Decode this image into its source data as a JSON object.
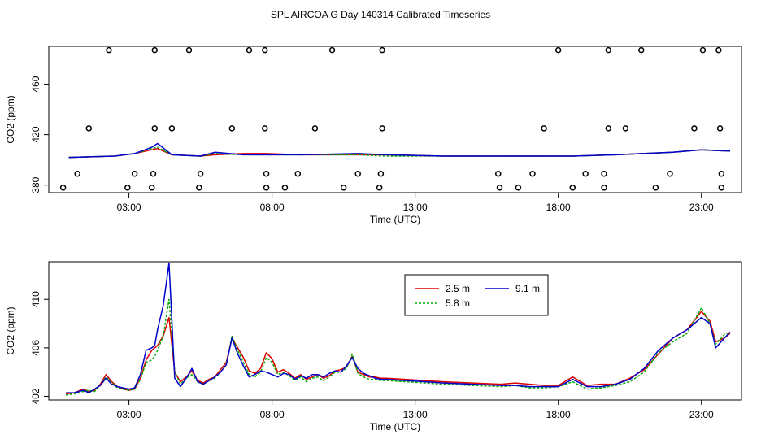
{
  "title": "SPL AIRCOA G  Day 140314  Calibrated Timeseries",
  "colors": {
    "s25": "#dd0000",
    "s58": "#00aa00",
    "s91": "#0000cc"
  },
  "chart_data": [
    {
      "type": "line",
      "panel": "top",
      "xlabel": "Time (UTC)",
      "ylabel": "CO2 (ppm)",
      "x_unit": "hours UTC",
      "xlim": [
        0.2,
        24.4
      ],
      "ylim": [
        374,
        490
      ],
      "x_ticks": [
        3,
        8,
        13,
        18,
        23
      ],
      "x_tick_labels": [
        "03:00",
        "08:00",
        "13:00",
        "18:00",
        "23:00"
      ],
      "y_ticks": [
        380,
        420,
        460
      ],
      "y_tick_labels": [
        "380",
        "420",
        "460"
      ],
      "grid": false,
      "series": [
        {
          "key": "s25",
          "color": "#dd0000",
          "x": [
            0.9,
            2.5,
            3.2,
            3.8,
            4.0,
            4.5,
            5.5,
            6.0,
            7.0,
            7.8,
            9.0,
            11.0,
            12.0,
            14.0,
            16.0,
            17.5,
            18.5,
            20.0,
            22.0,
            23.0,
            24.0
          ],
          "y": [
            402,
            403,
            405,
            408,
            409,
            404,
            403,
            404,
            405,
            405,
            404,
            404,
            404,
            403,
            403,
            403,
            403,
            404,
            406,
            408,
            407
          ]
        },
        {
          "key": "s58",
          "color": "#00aa00",
          "x": [
            0.9,
            2.5,
            3.2,
            3.8,
            4.0,
            4.5,
            5.5,
            6.0,
            7.0,
            7.8,
            9.0,
            11.0,
            12.0,
            14.0,
            16.0,
            17.5,
            18.5,
            20.0,
            22.0,
            23.0,
            24.0
          ],
          "y": [
            402,
            403,
            405,
            409,
            410,
            404,
            403,
            405,
            404,
            404,
            404,
            404,
            403,
            403,
            403,
            403,
            403,
            404,
            406,
            408,
            407
          ]
        },
        {
          "key": "s91",
          "color": "#0000cc",
          "x": [
            0.9,
            2.5,
            3.2,
            3.8,
            4.0,
            4.5,
            5.5,
            6.0,
            7.0,
            7.8,
            9.0,
            11.0,
            12.0,
            14.0,
            16.0,
            17.5,
            18.5,
            20.0,
            22.0,
            23.0,
            24.0
          ],
          "y": [
            402,
            403,
            405,
            410,
            413,
            404,
            403,
            406,
            404,
            404,
            404,
            405,
            404,
            403,
            403,
            403,
            403,
            404,
            406,
            408,
            407
          ]
        }
      ],
      "flag_points": {
        "x": [
          2.3,
          3.9,
          5.1,
          7.2,
          7.75,
          10.1,
          11.85,
          18.0,
          19.75,
          20.9,
          23.05,
          23.6,
          1.6,
          3.9,
          4.5,
          6.6,
          7.75,
          9.5,
          11.85,
          17.5,
          19.75,
          20.35,
          22.75,
          23.65,
          1.2,
          3.2,
          3.85,
          5.5,
          7.8,
          8.9,
          11.0,
          11.8,
          15.9,
          17.1,
          18.95,
          19.6,
          21.9,
          23.7,
          0.7,
          2.95,
          3.8,
          5.45,
          7.8,
          8.45,
          10.5,
          11.75,
          15.95,
          16.6,
          18.5,
          19.6,
          21.4,
          23.7
        ],
        "y": [
          487,
          487,
          487,
          487,
          487,
          487,
          487,
          487,
          487,
          487,
          487,
          487,
          425,
          425,
          425,
          425,
          425,
          425,
          425,
          425,
          425,
          425,
          425,
          425,
          389,
          389,
          389,
          389,
          389,
          389,
          389,
          389,
          389,
          389,
          389,
          389,
          389,
          389,
          378,
          378,
          378,
          378,
          378,
          378,
          378,
          378,
          378,
          378,
          378,
          378,
          378,
          378
        ]
      }
    },
    {
      "type": "line",
      "panel": "bottom",
      "xlabel": "Time (UTC)",
      "ylabel": "CO2 (ppm)",
      "x_unit": "hours UTC",
      "xlim": [
        0.2,
        24.4
      ],
      "ylim": [
        401.7,
        413.1
      ],
      "x_ticks": [
        3,
        8,
        13,
        18,
        23
      ],
      "x_tick_labels": [
        "03:00",
        "08:00",
        "13:00",
        "18:00",
        "23:00"
      ],
      "y_ticks": [
        402,
        406,
        410
      ],
      "y_tick_labels": [
        "402",
        "406",
        "410"
      ],
      "grid": false,
      "legend": {
        "placement": "top-center",
        "entries": [
          {
            "key": "s25",
            "label": "2.5 m"
          },
          {
            "key": "s91",
            "label": "9.1 m"
          },
          {
            "key": "s58",
            "label": "5.8 m"
          }
        ]
      },
      "series": [
        {
          "key": "s25",
          "name": "2.5 m",
          "color": "#dd0000",
          "x": [
            0.8,
            1.1,
            1.4,
            1.6,
            1.8,
            2.0,
            2.2,
            2.4,
            2.6,
            2.8,
            3.0,
            3.2,
            3.4,
            3.6,
            3.8,
            3.9,
            4.0,
            4.2,
            4.4,
            4.6,
            4.8,
            5.0,
            5.2,
            5.4,
            5.6,
            5.8,
            6.0,
            6.2,
            6.4,
            6.6,
            6.8,
            7.0,
            7.2,
            7.4,
            7.6,
            7.8,
            8.0,
            8.2,
            8.4,
            8.6,
            8.8,
            9.0,
            9.2,
            9.4,
            9.6,
            9.8,
            10.0,
            10.2,
            10.4,
            10.6,
            10.8,
            11.0,
            11.2,
            11.4,
            11.6,
            11.8,
            12.0,
            14.0,
            16.0,
            16.5,
            17.0,
            17.5,
            18.0,
            18.5,
            19.0,
            19.5,
            20.0,
            20.5,
            21.0,
            21.5,
            22.0,
            22.5,
            23.0,
            23.3,
            23.5,
            23.8,
            24.0
          ],
          "y": [
            402.2,
            402.3,
            402.6,
            402.4,
            402.5,
            403.0,
            403.8,
            403.2,
            402.8,
            402.6,
            402.5,
            402.6,
            403.5,
            405.0,
            405.8,
            406.0,
            406.2,
            407.0,
            408.5,
            404.0,
            403.2,
            403.6,
            404.1,
            403.3,
            403.1,
            403.4,
            403.6,
            404.2,
            404.8,
            406.8,
            406.0,
            405.2,
            404.1,
            403.9,
            404.3,
            405.6,
            405.1,
            404.0,
            404.2,
            403.9,
            403.5,
            403.8,
            403.4,
            403.6,
            403.8,
            403.5,
            403.7,
            404.1,
            404.2,
            404.4,
            405.3,
            404.0,
            403.8,
            403.6,
            403.6,
            403.5,
            403.5,
            403.2,
            403.0,
            403.1,
            403.0,
            402.9,
            402.9,
            403.6,
            402.9,
            403.0,
            403.0,
            403.5,
            404.2,
            405.5,
            406.8,
            407.5,
            409.0,
            408.2,
            406.5,
            406.8,
            407.2
          ]
        },
        {
          "key": "s58",
          "name": "5.8 m",
          "color": "#00aa00",
          "x": [
            0.8,
            1.1,
            1.4,
            1.6,
            1.8,
            2.0,
            2.2,
            2.4,
            2.6,
            2.8,
            3.0,
            3.2,
            3.4,
            3.6,
            3.8,
            3.9,
            4.0,
            4.2,
            4.4,
            4.6,
            4.8,
            5.0,
            5.2,
            5.4,
            5.6,
            5.8,
            6.0,
            6.2,
            6.4,
            6.6,
            6.8,
            7.0,
            7.2,
            7.4,
            7.6,
            7.8,
            8.0,
            8.2,
            8.4,
            8.6,
            8.8,
            9.0,
            9.2,
            9.4,
            9.6,
            9.8,
            10.0,
            10.2,
            10.4,
            10.6,
            10.8,
            11.0,
            11.2,
            11.4,
            11.6,
            11.8,
            12.0,
            14.0,
            16.0,
            16.5,
            17.0,
            17.5,
            18.0,
            18.5,
            19.0,
            19.5,
            20.0,
            20.5,
            21.0,
            21.5,
            22.0,
            22.5,
            23.0,
            23.3,
            23.5,
            23.8,
            24.0
          ],
          "y": [
            402.1,
            402.2,
            402.4,
            402.5,
            402.4,
            402.9,
            403.6,
            403.1,
            402.7,
            402.6,
            402.5,
            402.6,
            403.4,
            404.8,
            405.0,
            405.3,
            405.8,
            407.0,
            410.0,
            404.0,
            403.0,
            403.5,
            403.8,
            403.2,
            403.0,
            403.3,
            403.5,
            404.0,
            404.6,
            407.0,
            405.8,
            404.8,
            403.8,
            403.6,
            404.0,
            405.2,
            404.8,
            403.8,
            404.0,
            403.7,
            403.3,
            403.6,
            403.2,
            403.5,
            403.6,
            403.3,
            403.6,
            404.0,
            404.0,
            404.3,
            405.5,
            403.9,
            403.6,
            403.4,
            403.4,
            403.3,
            403.3,
            403.0,
            402.8,
            402.9,
            402.7,
            402.7,
            402.8,
            403.2,
            402.6,
            402.7,
            402.9,
            403.2,
            404.0,
            405.6,
            406.5,
            407.2,
            409.3,
            408.0,
            406.3,
            407.1,
            407.3
          ]
        },
        {
          "key": "s91",
          "name": "9.1 m",
          "color": "#0000cc",
          "x": [
            0.8,
            1.1,
            1.4,
            1.6,
            1.8,
            2.0,
            2.2,
            2.4,
            2.6,
            2.8,
            3.0,
            3.2,
            3.4,
            3.6,
            3.8,
            3.9,
            4.0,
            4.2,
            4.4,
            4.6,
            4.8,
            5.0,
            5.2,
            5.4,
            5.6,
            5.8,
            6.0,
            6.2,
            6.4,
            6.6,
            6.8,
            7.0,
            7.2,
            7.4,
            7.6,
            7.8,
            8.0,
            8.2,
            8.4,
            8.6,
            8.8,
            9.0,
            9.2,
            9.4,
            9.6,
            9.8,
            10.0,
            10.2,
            10.4,
            10.6,
            10.8,
            11.0,
            11.2,
            11.4,
            11.6,
            11.8,
            12.0,
            14.0,
            16.0,
            16.5,
            17.0,
            17.5,
            18.0,
            18.5,
            19.0,
            19.5,
            20.0,
            20.5,
            21.0,
            21.5,
            22.0,
            22.5,
            23.0,
            23.3,
            23.5,
            23.8,
            24.0
          ],
          "y": [
            402.3,
            402.3,
            402.5,
            402.3,
            402.6,
            402.9,
            403.5,
            403.0,
            402.8,
            402.7,
            402.6,
            402.7,
            403.8,
            405.8,
            406.0,
            406.2,
            407.5,
            409.5,
            413.0,
            403.5,
            402.8,
            403.5,
            404.3,
            403.2,
            403.0,
            403.3,
            403.6,
            404.0,
            404.6,
            406.8,
            405.5,
            404.5,
            403.6,
            403.8,
            404.1,
            404.0,
            403.8,
            403.6,
            403.9,
            403.8,
            403.4,
            403.7,
            403.5,
            403.8,
            403.8,
            403.6,
            403.9,
            404.1,
            404.0,
            404.5,
            405.2,
            404.3,
            403.9,
            403.7,
            403.5,
            403.4,
            403.4,
            403.1,
            402.9,
            402.9,
            402.8,
            402.8,
            402.8,
            403.4,
            402.8,
            402.8,
            403.0,
            403.4,
            404.3,
            405.8,
            406.8,
            407.5,
            408.5,
            408.0,
            406.0,
            406.8,
            407.3
          ]
        }
      ]
    }
  ]
}
